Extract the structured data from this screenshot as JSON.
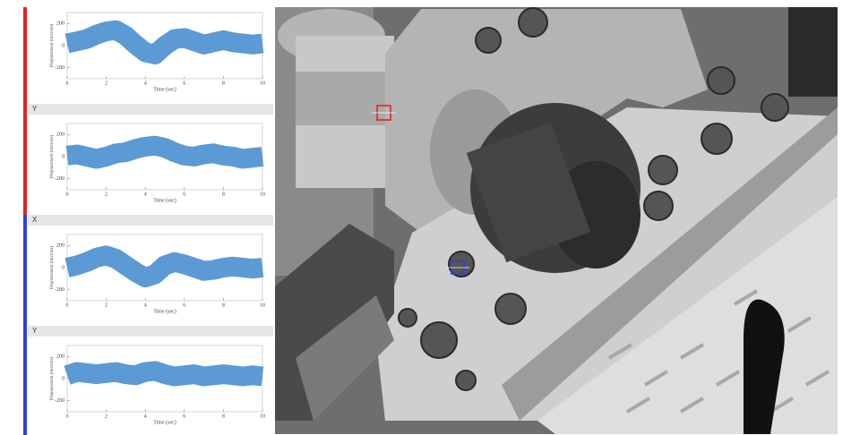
{
  "targets": [
    {
      "color": "#e3231f",
      "panels": [
        {
          "y_label": "Displacement (microns)",
          "x_label": "Time (sec)",
          "xlim": [
            0,
            10
          ],
          "ylim": [
            -300,
            300
          ],
          "xticks": [
            0,
            2,
            4,
            6,
            8,
            10
          ],
          "yticks": [
            -200,
            0,
            200
          ],
          "line_color": "#4a8fd0",
          "x": [
            0,
            0.5,
            1,
            1.5,
            2,
            2.5,
            3,
            3.5,
            4,
            4.5,
            5,
            5.5,
            6,
            6.5,
            7,
            7.5,
            8,
            8.5,
            9,
            9.5,
            10
          ],
          "values": [
            20,
            40,
            60,
            100,
            130,
            140,
            90,
            10,
            -60,
            -80,
            0,
            60,
            70,
            40,
            10,
            30,
            50,
            30,
            20,
            10,
            20
          ]
        },
        {
          "label": "Y",
          "y_label": "Displacement (microns)",
          "x_label": "Time (sec)",
          "xlim": [
            0,
            10
          ],
          "ylim": [
            -300,
            300
          ],
          "xticks": [
            0,
            2,
            4,
            6,
            8,
            10
          ],
          "yticks": [
            -200,
            0,
            200
          ],
          "line_color": "#4a8fd0",
          "x": [
            0,
            0.5,
            1,
            1.5,
            2,
            2.5,
            3,
            3.5,
            4,
            4.5,
            5,
            5.5,
            6,
            6.5,
            7,
            7.5,
            8,
            8.5,
            9,
            9.5,
            10
          ],
          "values": [
            10,
            20,
            0,
            -20,
            0,
            30,
            40,
            70,
            90,
            100,
            80,
            40,
            10,
            0,
            20,
            30,
            10,
            0,
            -20,
            -10,
            0
          ]
        }
      ]
    },
    {
      "color": "#2f3ee0",
      "panels": [
        {
          "label": "X",
          "y_label": "Displacement (microns)",
          "x_label": "Time (sec)",
          "xlim": [
            0,
            10
          ],
          "ylim": [
            -300,
            300
          ],
          "xticks": [
            0,
            2,
            4,
            6,
            8,
            10
          ],
          "yticks": [
            -200,
            0,
            200
          ],
          "line_color": "#4a8fd0",
          "x": [
            0,
            0.5,
            1,
            1.5,
            2,
            2.5,
            3,
            3.5,
            4,
            4.5,
            5,
            5.5,
            6,
            6.5,
            7,
            7.5,
            8,
            8.5,
            9,
            9.5,
            10
          ],
          "values": [
            0,
            20,
            50,
            90,
            110,
            80,
            20,
            -40,
            -90,
            -60,
            20,
            50,
            30,
            0,
            -30,
            -20,
            0,
            10,
            0,
            -10,
            0
          ]
        },
        {
          "label": "Y",
          "y_label": "Displacement (microns)",
          "x_label": "Time (sec)",
          "xlim": [
            0,
            10
          ],
          "ylim": [
            -300,
            300
          ],
          "xticks": [
            0,
            2,
            4,
            6,
            8,
            10
          ],
          "yticks": [
            -200,
            0,
            200
          ],
          "line_color": "#4a8fd0",
          "x": [
            0,
            0.5,
            1,
            1.5,
            2,
            2.5,
            3,
            3.5,
            4,
            4.5,
            5,
            5.5,
            6,
            6.5,
            7,
            7.5,
            8,
            8.5,
            9,
            9.5,
            10
          ],
          "values": [
            30,
            60,
            50,
            40,
            50,
            60,
            40,
            30,
            60,
            70,
            40,
            20,
            30,
            40,
            20,
            30,
            40,
            30,
            20,
            30,
            20
          ]
        }
      ]
    }
  ]
}
